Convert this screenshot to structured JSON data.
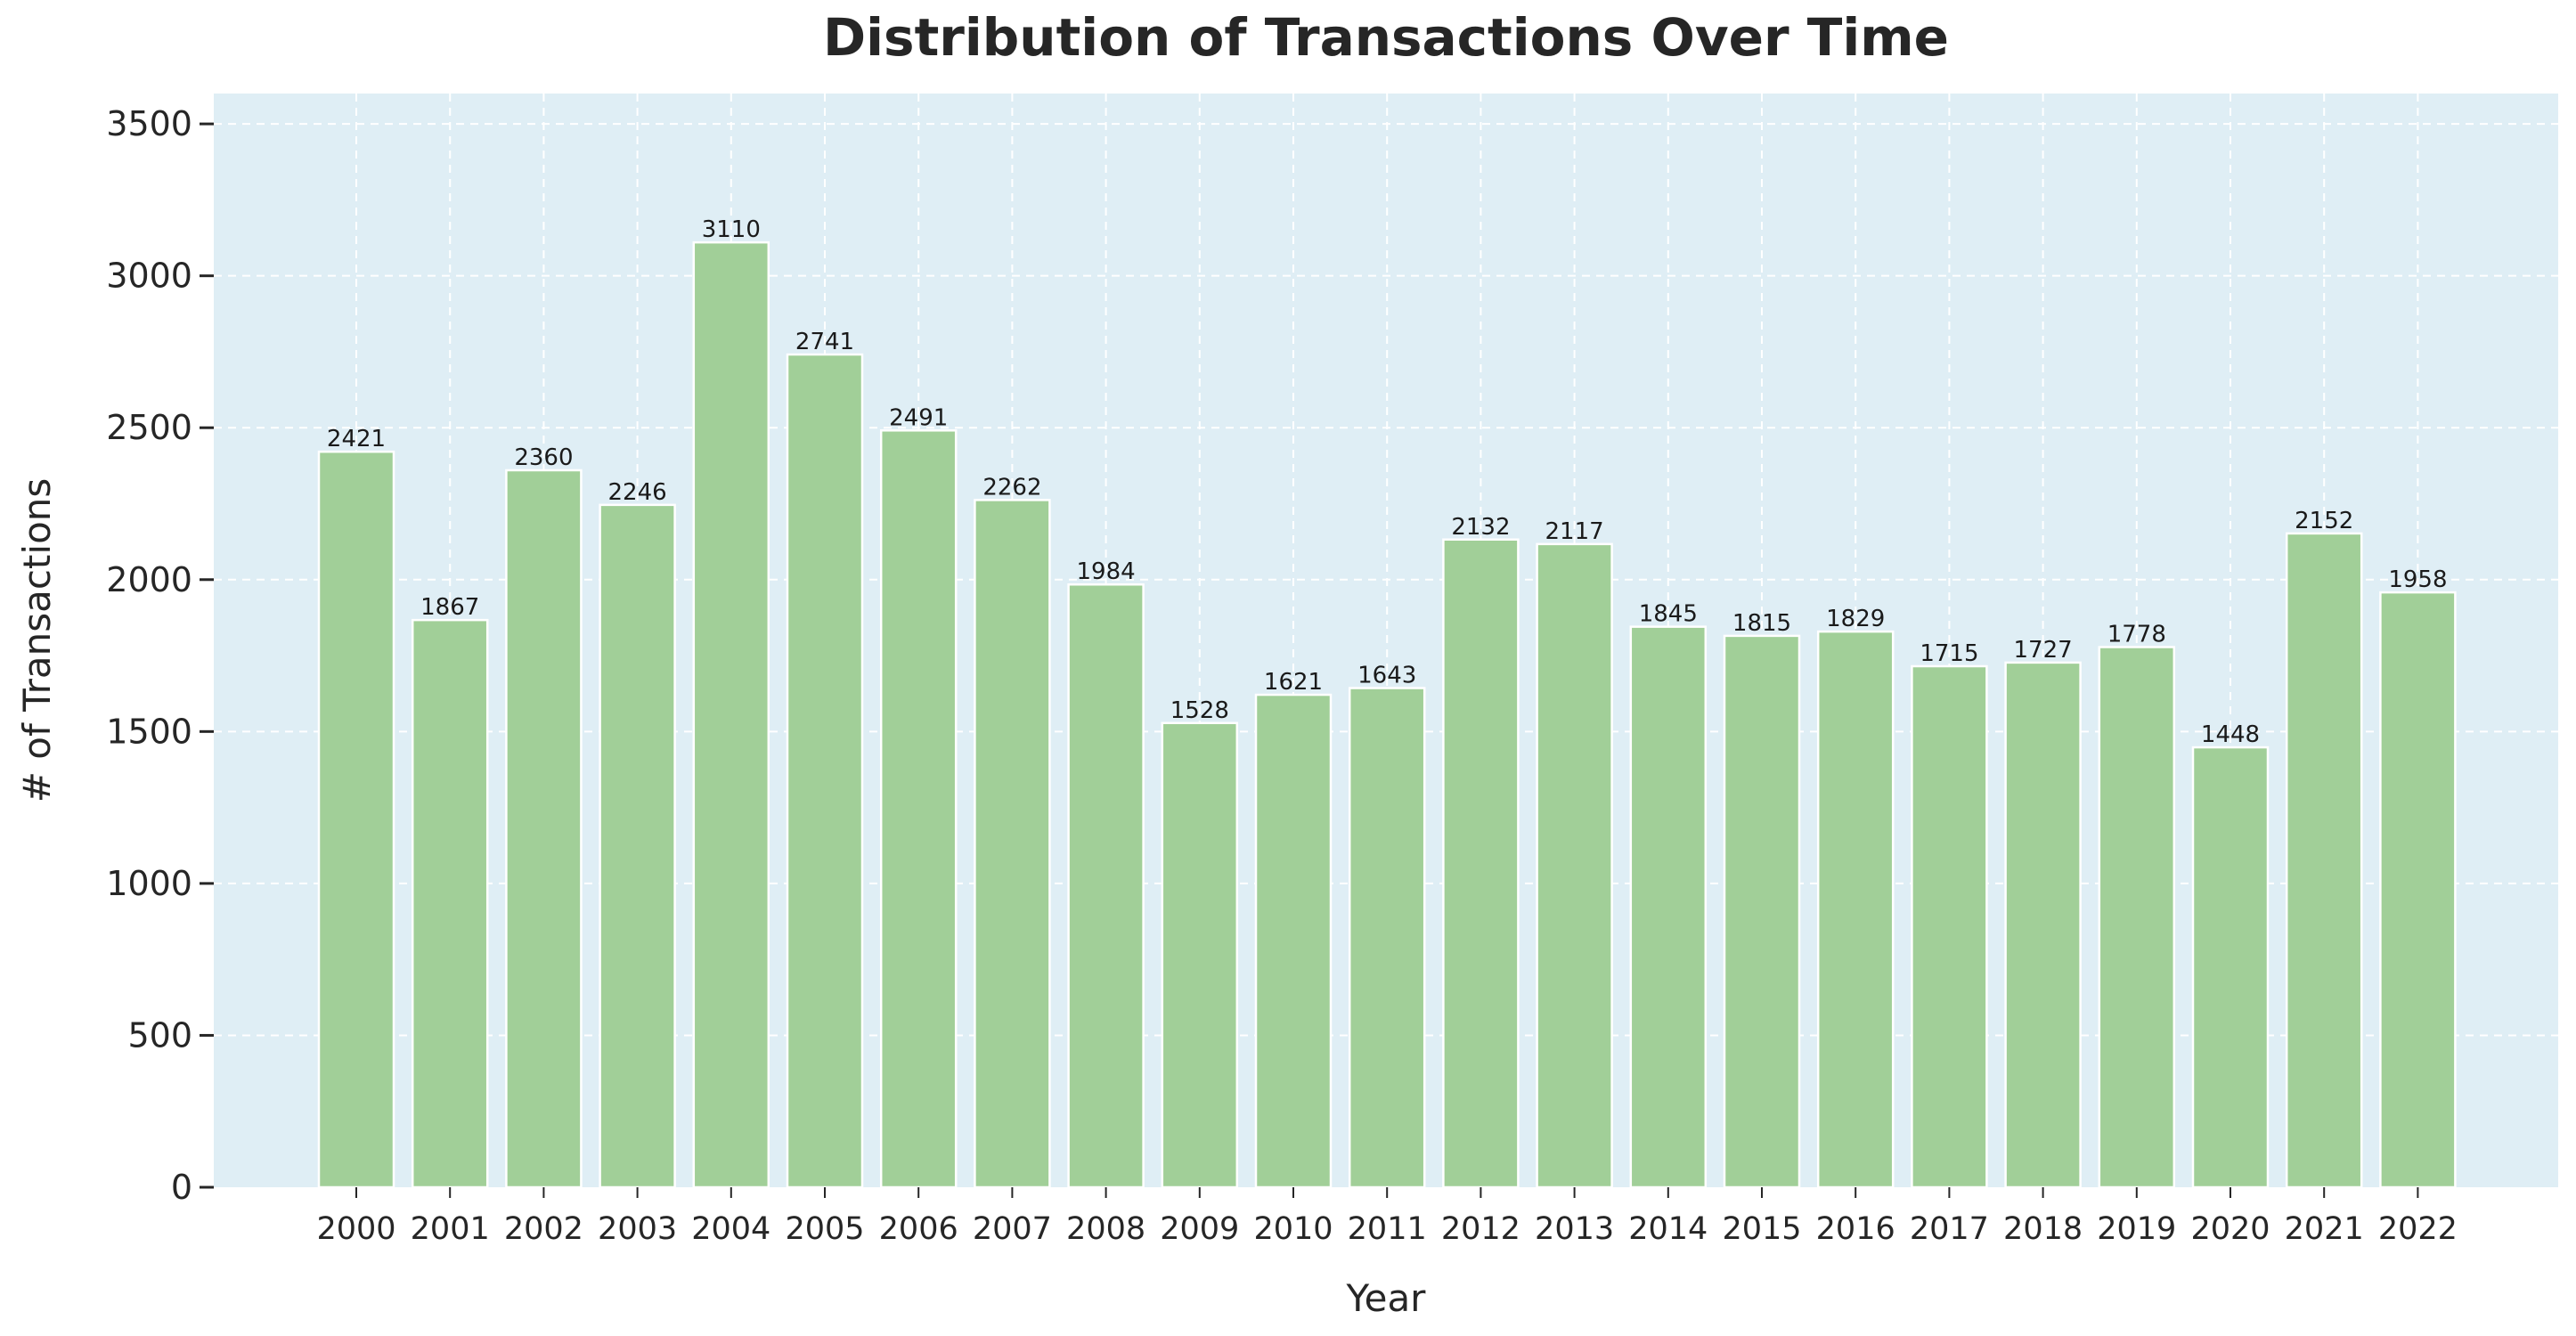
{
  "chart_data": {
    "type": "bar",
    "title": "Distribution of Transactions Over Time",
    "xlabel": "Year",
    "ylabel": "# of Transactions",
    "categories": [
      "2000",
      "2001",
      "2002",
      "2003",
      "2004",
      "2005",
      "2006",
      "2007",
      "2008",
      "2009",
      "2010",
      "2011",
      "2012",
      "2013",
      "2014",
      "2015",
      "2016",
      "2017",
      "2018",
      "2019",
      "2020",
      "2021",
      "2022"
    ],
    "values": [
      2421,
      1867,
      2360,
      2246,
      3110,
      2741,
      2491,
      2262,
      1984,
      1528,
      1621,
      1643,
      2132,
      2117,
      1845,
      1815,
      1829,
      1715,
      1727,
      1778,
      1448,
      2152,
      1958
    ],
    "ylim": [
      0,
      3600
    ],
    "yticks": [
      0,
      500,
      1000,
      1500,
      2000,
      2500,
      3000,
      3500
    ],
    "grid": true,
    "colors": {
      "bar": "#a1cf98",
      "bar_edge": "#ffffff",
      "plot_background": "#dfeef5",
      "grid": "#ffffff",
      "text": "#262626"
    }
  }
}
